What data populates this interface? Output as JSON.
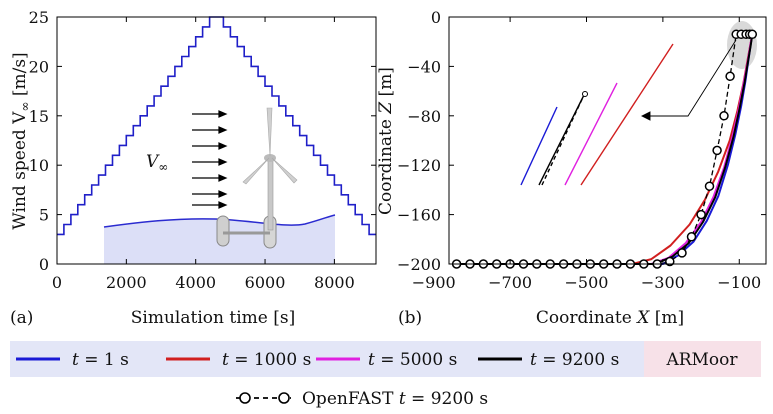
{
  "chart_data": [
    {
      "panel": "(a)",
      "type": "line",
      "xlabel": "Simulation time [s]",
      "ylabel_text": "Wind speed V",
      "ylabel_sub": "∞",
      "ylabel_unit": " [m/s]",
      "xlim": [
        0,
        9200
      ],
      "ylim": [
        0,
        25
      ],
      "xticks": [
        0,
        2000,
        4000,
        6000,
        8000
      ],
      "yticks": [
        0,
        5,
        10,
        15,
        20,
        25
      ],
      "series": [
        {
          "name": "Wind speed (stepwise ramp up/down)",
          "color": "#1f1fc8",
          "x": [
            0,
            200,
            200,
            400,
            400,
            600,
            600,
            800,
            800,
            1000,
            1000,
            1200,
            1200,
            1400,
            1400,
            1600,
            1600,
            1800,
            1800,
            2000,
            2000,
            2200,
            2200,
            2400,
            2400,
            2600,
            2600,
            2800,
            2800,
            3000,
            3000,
            3200,
            3200,
            3400,
            3400,
            3600,
            3600,
            3800,
            3800,
            4000,
            4000,
            4200,
            4200,
            4400,
            4400,
            4600,
            4600,
            4800,
            4800,
            5000,
            5000,
            5200,
            5200,
            5400,
            5400,
            5600,
            5600,
            5800,
            5800,
            6000,
            6000,
            6200,
            6200,
            6400,
            6400,
            6600,
            6600,
            6800,
            6800,
            7000,
            7000,
            7200,
            7200,
            7400,
            7400,
            7600,
            7600,
            7800,
            7800,
            8000,
            8000,
            8200,
            8200,
            8400,
            8400,
            8600,
            8600,
            8800,
            8800,
            9000,
            9000,
            9200
          ],
          "y": [
            3,
            3,
            4,
            4,
            5,
            5,
            6,
            6,
            7,
            7,
            8,
            8,
            9,
            9,
            10,
            10,
            11,
            11,
            12,
            12,
            13,
            13,
            14,
            14,
            15,
            15,
            16,
            16,
            17,
            17,
            18,
            18,
            19,
            19,
            20,
            20,
            21,
            21,
            22,
            22,
            23,
            23,
            24,
            24,
            25,
            25,
            25,
            25,
            24,
            24,
            23,
            23,
            22,
            22,
            21,
            21,
            20,
            20,
            19,
            19,
            18,
            18,
            17,
            17,
            16,
            16,
            15,
            15,
            14,
            14,
            13,
            13,
            12,
            12,
            11,
            11,
            10,
            10,
            9,
            9,
            8,
            8,
            7,
            7,
            6,
            6,
            5,
            5,
            4,
            4,
            3,
            3
          ]
        }
      ],
      "inset_label": "V",
      "inset_label_sub": "∞"
    },
    {
      "panel": "(b)",
      "type": "line",
      "xlabel_text": "Coordinate ",
      "xlabel_var": "X",
      "xlabel_unit": " [m]",
      "ylabel_text": "Coordinate ",
      "ylabel_var": "Z",
      "ylabel_unit": " [m]",
      "xlim": [
        -860,
        -30
      ],
      "ylim": [
        -200,
        0
      ],
      "xticks": [
        -900,
        -700,
        -500,
        -300,
        -100
      ],
      "yticks": [
        0,
        -40,
        -80,
        -120,
        -160,
        -200
      ],
      "series": [
        {
          "name": "t = 1 s",
          "color": "#1a1ad6",
          "x": [
            -840,
            -300,
            -260,
            -220,
            -185,
            -155,
            -130,
            -110,
            -95,
            -84,
            -76,
            -70,
            -66
          ],
          "y": [
            -200,
            -200,
            -193,
            -182,
            -165,
            -145,
            -120,
            -95,
            -72,
            -52,
            -35,
            -22,
            -14
          ]
        },
        {
          "name": "t = 1000 s",
          "color": "#d11f1f",
          "x": [
            -840,
            -380,
            -330,
            -280,
            -230,
            -190,
            -155,
            -125,
            -105,
            -90,
            -80,
            -72,
            -66
          ],
          "y": [
            -200,
            -200,
            -196,
            -185,
            -168,
            -148,
            -125,
            -100,
            -76,
            -55,
            -38,
            -24,
            -14
          ]
        },
        {
          "name": "t = 5000 s",
          "color": "#e020e0",
          "x": [
            -840,
            -330,
            -285,
            -240,
            -200,
            -168,
            -140,
            -118,
            -101,
            -88,
            -78,
            -71,
            -66
          ],
          "y": [
            -200,
            -200,
            -195,
            -183,
            -166,
            -146,
            -122,
            -97,
            -74,
            -53,
            -36,
            -23,
            -14
          ]
        },
        {
          "name": "t = 9200 s",
          "color": "#000000",
          "x": [
            -840,
            -320,
            -275,
            -232,
            -195,
            -163,
            -137,
            -115,
            -99,
            -86,
            -77,
            -70,
            -66
          ],
          "y": [
            -200,
            -200,
            -194,
            -183,
            -166,
            -146,
            -122,
            -97,
            -74,
            -53,
            -36,
            -23,
            -14
          ]
        }
      ],
      "openfast": {
        "name": "OpenFAST t = 9200 s",
        "x": [
          -840,
          -805,
          -770,
          -735,
          -700,
          -665,
          -630,
          -595,
          -560,
          -525,
          -490,
          -455,
          -420,
          -385,
          -350,
          -315,
          -282,
          -250,
          -225,
          -200,
          -178,
          -158,
          -140,
          -124,
          -108,
          -95,
          -82,
          -73,
          -66
        ],
        "y": [
          -200,
          -200,
          -200,
          -200,
          -200,
          -200,
          -200,
          -200,
          -200,
          -200,
          -200,
          -200,
          -200,
          -200,
          -200,
          -200,
          -198,
          -191,
          -178,
          -160,
          -137,
          -108,
          -80,
          -48,
          -14,
          -14,
          -14,
          -14,
          -14
        ]
      }
    }
  ],
  "legend": {
    "items": [
      {
        "prefix": "t",
        "label": " = 1 s",
        "color": "#1a1ad6"
      },
      {
        "prefix": "t",
        "label": " = 1000 s",
        "color": "#d11f1f"
      },
      {
        "prefix": "t",
        "label": " = 5000 s",
        "color": "#e020e0"
      },
      {
        "prefix": "t",
        "label": " = 9200 s",
        "color": "#000000"
      }
    ],
    "armoor": "ARMoor",
    "openfast_prefix": "OpenFAST ",
    "openfast_var": "t",
    "openfast_suffix": " = 9200 s"
  },
  "colors": {
    "legend_band": "#e3e6f7",
    "armoor_box": "#f7e1e8",
    "sea": "#dcdff7"
  }
}
